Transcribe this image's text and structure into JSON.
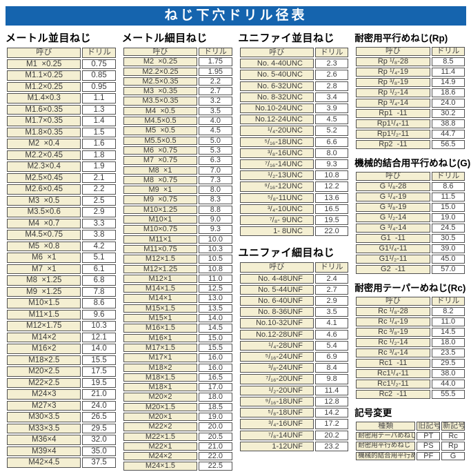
{
  "title": "ねじ下穴ドリル径表",
  "col_headers": {
    "name": "呼び",
    "drill": "ドリル"
  },
  "sections": {
    "metric_coarse": {
      "title": "メートル並目ねじ",
      "rows": [
        [
          "M1  ×0.25",
          "0.75"
        ],
        [
          "M1.1×0.25",
          "0.85"
        ],
        [
          "M1.2×0.25",
          "0.95"
        ],
        [
          "M1.4×0.3",
          "1.1"
        ],
        [
          "M1.6×0.35",
          "1.3"
        ],
        [
          "M1.7×0.35",
          "1.4"
        ],
        [
          "M1.8×0.35",
          "1.5"
        ],
        [
          "M2  ×0.4",
          "1.6"
        ],
        [
          "M2.2×0.45",
          "1.8"
        ],
        [
          "M2.3×0.4",
          "1.9"
        ],
        [
          "M2.5×0.45",
          "2.1"
        ],
        [
          "M2.6×0.45",
          "2.2"
        ],
        [
          "M3  ×0.5",
          "2.5"
        ],
        [
          "M3.5×0.6",
          "2.9"
        ],
        [
          "M4  ×0.7",
          "3.3"
        ],
        [
          "M4.5×0.75",
          "3.8"
        ],
        [
          "M5  ×0.8",
          "4.2"
        ],
        [
          "M6  ×1",
          "5.1"
        ],
        [
          "M7  ×1",
          "6.1"
        ],
        [
          "M8  ×1.25",
          "6.8"
        ],
        [
          "M9  ×1.25",
          "7.8"
        ],
        [
          "M10×1.5",
          "8.6"
        ],
        [
          "M11×1.5",
          "9.6"
        ],
        [
          "M12×1.75",
          "10.3"
        ],
        [
          "M14×2",
          "12.1"
        ],
        [
          "M16×2",
          "14.0"
        ],
        [
          "M18×2.5",
          "15.5"
        ],
        [
          "M20×2.5",
          "17.5"
        ],
        [
          "M22×2.5",
          "19.5"
        ],
        [
          "M24×3",
          "21.0"
        ],
        [
          "M27×3",
          "24.0"
        ],
        [
          "M30×3.5",
          "26.5"
        ],
        [
          "M33×3.5",
          "29.5"
        ],
        [
          "M36×4",
          "32.0"
        ],
        [
          "M39×4",
          "35.0"
        ],
        [
          "M42×4.5",
          "37.5"
        ]
      ]
    },
    "metric_fine": {
      "title": "メートル細目ねじ",
      "rows": [
        [
          "M2  ×0.25",
          "1.75"
        ],
        [
          "M2.2×0.25",
          "1.95"
        ],
        [
          "M2.5×0.35",
          "2.2"
        ],
        [
          "M3  ×0.35",
          "2.7"
        ],
        [
          "M3.5×0.35",
          "3.2"
        ],
        [
          "M4  ×0.5",
          "3.5"
        ],
        [
          "M4.5×0.5",
          "4.0"
        ],
        [
          "M5  ×0.5",
          "4.5"
        ],
        [
          "M5.5×0.5",
          "5.0"
        ],
        [
          "M6  ×0.75",
          "5.3"
        ],
        [
          "M7  ×0.75",
          "6.3"
        ],
        [
          "M8  ×1",
          "7.0"
        ],
        [
          "M8  ×0.75",
          "7.3"
        ],
        [
          "M9  ×1",
          "8.0"
        ],
        [
          "M9  ×0.75",
          "8.3"
        ],
        [
          "M10×1.25",
          "8.8"
        ],
        [
          "M10×1",
          "9.0"
        ],
        [
          "M10×0.75",
          "9.3"
        ],
        [
          "M11×1",
          "10.0"
        ],
        [
          "M11×0.75",
          "10.3"
        ],
        [
          "M12×1.5",
          "10.5"
        ],
        [
          "M12×1.25",
          "10.8"
        ],
        [
          "M12×1",
          "11.0"
        ],
        [
          "M14×1.5",
          "12.5"
        ],
        [
          "M14×1",
          "13.0"
        ],
        [
          "M15×1.5",
          "13.5"
        ],
        [
          "M15×1",
          "14.0"
        ],
        [
          "M16×1.5",
          "14.5"
        ],
        [
          "M16×1",
          "15.0"
        ],
        [
          "M17×1.5",
          "15.5"
        ],
        [
          "M17×1",
          "16.0"
        ],
        [
          "M18×2",
          "16.0"
        ],
        [
          "M18×1.5",
          "16.5"
        ],
        [
          "M18×1",
          "17.0"
        ],
        [
          "M20×2",
          "18.0"
        ],
        [
          "M20×1.5",
          "18.5"
        ],
        [
          "M20×1",
          "19.0"
        ],
        [
          "M22×2",
          "20.0"
        ],
        [
          "M22×1.5",
          "20.5"
        ],
        [
          "M22×1",
          "21.0"
        ],
        [
          "M24×2",
          "22.0"
        ],
        [
          "M24×1.5",
          "22.5"
        ]
      ]
    },
    "unified_coarse": {
      "title": "ユニファイ並目ねじ",
      "rows": [
        [
          "No. 4-40UNC",
          "2.3"
        ],
        [
          "No. 5-40UNC",
          "2.6"
        ],
        [
          "No. 6-32UNC",
          "2.8"
        ],
        [
          "No. 8-32UNC",
          "3.4"
        ],
        [
          "No.10-24UNC",
          "3.9"
        ],
        [
          "No.12-24UNC",
          "4.5"
        ],
        [
          "¹/₄-20UNC",
          "5.2"
        ],
        [
          "⁵/₁₆-18UNC",
          "6.6"
        ],
        [
          "³/₈-16UNC",
          "8.0"
        ],
        [
          "⁷/₁₆-14UNC",
          "9.3"
        ],
        [
          "¹/₂-13UNC",
          "10.8"
        ],
        [
          "⁹/₁₆-12UNC",
          "12.2"
        ],
        [
          "⁵/₈-11UNC",
          "13.6"
        ],
        [
          "³/₄-10UNC",
          "16.5"
        ],
        [
          "⁷/₈- 9UNC",
          "19.5"
        ],
        [
          "1- 8UNC",
          "22.0"
        ]
      ]
    },
    "unified_fine": {
      "title": "ユニファイ細目ねじ",
      "rows": [
        [
          "No. 4-48UNF",
          "2.4"
        ],
        [
          "No. 5-44UNF",
          "2.7"
        ],
        [
          "No. 6-40UNF",
          "2.9"
        ],
        [
          "No. 8-36UNF",
          "3.5"
        ],
        [
          "No.10-32UNF",
          "4.1"
        ],
        [
          "No.12-28UNF",
          "4.6"
        ],
        [
          "¹/₄-28UNF",
          "5.4"
        ],
        [
          "⁵/₁₆-24UNF",
          "6.9"
        ],
        [
          "³/₈-24UNF",
          "8.4"
        ],
        [
          "⁷/₁₆-20UNF",
          "9.8"
        ],
        [
          "¹/₂-20UNF",
          "11.4"
        ],
        [
          "⁹/₁₆-18UNF",
          "12.8"
        ],
        [
          "⁵/₈-18UNF",
          "14.2"
        ],
        [
          "³/₄-16UNF",
          "17.2"
        ],
        [
          "⁷/₈-14UNF",
          "20.2"
        ],
        [
          "1-12UNF",
          "23.2"
        ]
      ]
    },
    "rp": {
      "title": "耐密用平行めねじ(Rp)",
      "rows": [
        [
          "Rp ¹/₈-28",
          "8.5"
        ],
        [
          "Rp ¹/₄-19",
          "11.4"
        ],
        [
          "Rp ³/₈-19",
          "14.9"
        ],
        [
          "Rp ¹/₂-14",
          "18.6"
        ],
        [
          "Rp ³/₄-14",
          "24.0"
        ],
        [
          "Rp1  -11",
          "30.2"
        ],
        [
          "Rp1¹/₄-11",
          "38.8"
        ],
        [
          "Rp1¹/₂-11",
          "44.7"
        ],
        [
          "Rp2  -11",
          "56.5"
        ]
      ]
    },
    "g": {
      "title": "機械的結合用平行めねじ(G)",
      "rows": [
        [
          "G ¹/₈-28",
          "8.6"
        ],
        [
          "G ¹/₄-19",
          "11.5"
        ],
        [
          "G ³/₈-19",
          "15.0"
        ],
        [
          "G ¹/₂-14",
          "19.0"
        ],
        [
          "G ³/₄-14",
          "24.5"
        ],
        [
          "G1  -11",
          "30.5"
        ],
        [
          "G1¹/₄-11",
          "39.0"
        ],
        [
          "G1¹/₂-11",
          "45.0"
        ],
        [
          "G2  -11",
          "57.0"
        ]
      ]
    },
    "rc": {
      "title": "耐密用テーパーめねじ(Rc)",
      "rows": [
        [
          "Rc ¹/₈-28",
          "8.2"
        ],
        [
          "Rc ¹/₄-19",
          "11.0"
        ],
        [
          "Rc ³/₈-19",
          "14.5"
        ],
        [
          "Rc ¹/₂-14",
          "18.0"
        ],
        [
          "Rc ³/₄-14",
          "23.5"
        ],
        [
          "Rc1  -11",
          "29.5"
        ],
        [
          "Rc1¹/₄-11",
          "38.0"
        ],
        [
          "Rc1¹/₂-11",
          "44.0"
        ],
        [
          "Rc2  -11",
          "55.5"
        ]
      ]
    }
  },
  "symbol_change": {
    "title": "記号変更",
    "headers": [
      "種類",
      "旧記号",
      "新記号"
    ],
    "rows": [
      [
        "耐密用テーパめねじ",
        "PT",
        "Rc"
      ],
      [
        "耐密用平行めねじ",
        "PS",
        "Rp"
      ],
      [
        "機械的結合用平行めねじ",
        "PF",
        "G"
      ]
    ]
  }
}
